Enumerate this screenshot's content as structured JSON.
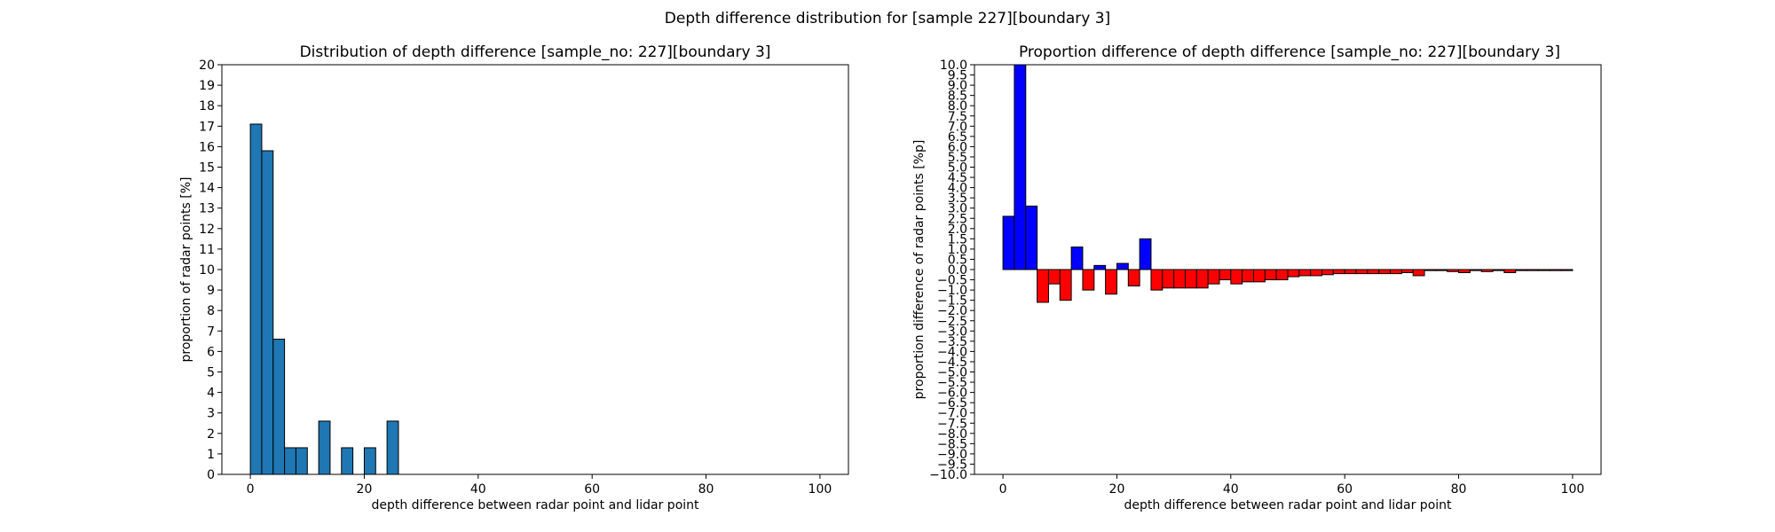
{
  "suptitle": "Depth difference distribution for [sample 227][boundary 3]",
  "chart_data": [
    {
      "type": "bar",
      "title": "Distribution of depth difference [sample_no: 227][boundary 3]",
      "xlabel": "depth difference between radar point and lidar point",
      "ylabel": "proportion of radar points [%]",
      "xlim": [
        -5,
        105
      ],
      "ylim": [
        0,
        20
      ],
      "xticks": [
        "0",
        "20",
        "40",
        "60",
        "80",
        "100"
      ],
      "yticks": [
        "0",
        "1",
        "2",
        "3",
        "4",
        "5",
        "6",
        "7",
        "8",
        "9",
        "10",
        "11",
        "12",
        "13",
        "14",
        "15",
        "16",
        "17",
        "18",
        "19",
        "20"
      ],
      "bin_width": 2,
      "bar_color": "#1f77b4",
      "edge_color": "#000000",
      "grid": false,
      "bins": [
        {
          "x0": 0,
          "value": 17.1
        },
        {
          "x0": 2,
          "value": 15.8
        },
        {
          "x0": 4,
          "value": 6.6
        },
        {
          "x0": 6,
          "value": 1.3
        },
        {
          "x0": 8,
          "value": 1.3
        },
        {
          "x0": 12,
          "value": 2.6
        },
        {
          "x0": 16,
          "value": 1.3
        },
        {
          "x0": 20,
          "value": 1.3
        },
        {
          "x0": 24,
          "value": 2.6
        }
      ]
    },
    {
      "type": "bar",
      "title": "Proportion difference of depth difference [sample_no: 227][boundary 3]",
      "xlabel": "depth difference between radar point and lidar point",
      "ylabel": "proportion difference of radar points [%p]",
      "xlim": [
        -5,
        105
      ],
      "ylim": [
        -10,
        10
      ],
      "xticks": [
        "0",
        "20",
        "40",
        "60",
        "80",
        "100"
      ],
      "yticks": [
        "−10.0",
        "−9.5",
        "−9.0",
        "−8.5",
        "−8.0",
        "−7.5",
        "−7.0",
        "−6.5",
        "−6.0",
        "−5.5",
        "−5.0",
        "−4.5",
        "−4.0",
        "−3.5",
        "−3.0",
        "−2.5",
        "−2.0",
        "−1.5",
        "−1.0",
        "−0.5",
        "0.0",
        "0.5",
        "1.0",
        "1.5",
        "2.0",
        "2.5",
        "3.0",
        "3.5",
        "4.0",
        "4.5",
        "5.0",
        "5.5",
        "6.0",
        "6.5",
        "7.0",
        "7.5",
        "8.0",
        "8.5",
        "9.0",
        "9.5",
        "10.0"
      ],
      "bin_width": 2,
      "positive_color": "#0000ff",
      "negative_color": "#ff0000",
      "edge_color": "#000000",
      "grid": false,
      "bins": [
        {
          "x0": 0,
          "value": 2.6
        },
        {
          "x0": 2,
          "value": 10.0
        },
        {
          "x0": 4,
          "value": 3.1
        },
        {
          "x0": 6,
          "value": -1.6
        },
        {
          "x0": 8,
          "value": -0.7
        },
        {
          "x0": 10,
          "value": -1.5
        },
        {
          "x0": 12,
          "value": 1.1
        },
        {
          "x0": 14,
          "value": -1.0
        },
        {
          "x0": 16,
          "value": 0.2
        },
        {
          "x0": 18,
          "value": -1.2
        },
        {
          "x0": 20,
          "value": 0.3
        },
        {
          "x0": 22,
          "value": -0.8
        },
        {
          "x0": 24,
          "value": 1.5
        },
        {
          "x0": 26,
          "value": -1.0
        },
        {
          "x0": 28,
          "value": -0.9
        },
        {
          "x0": 30,
          "value": -0.9
        },
        {
          "x0": 32,
          "value": -0.9
        },
        {
          "x0": 34,
          "value": -0.9
        },
        {
          "x0": 36,
          "value": -0.7
        },
        {
          "x0": 38,
          "value": -0.5
        },
        {
          "x0": 40,
          "value": -0.7
        },
        {
          "x0": 42,
          "value": -0.6
        },
        {
          "x0": 44,
          "value": -0.6
        },
        {
          "x0": 46,
          "value": -0.5
        },
        {
          "x0": 48,
          "value": -0.5
        },
        {
          "x0": 50,
          "value": -0.35
        },
        {
          "x0": 52,
          "value": -0.3
        },
        {
          "x0": 54,
          "value": -0.3
        },
        {
          "x0": 56,
          "value": -0.25
        },
        {
          "x0": 58,
          "value": -0.2
        },
        {
          "x0": 60,
          "value": -0.2
        },
        {
          "x0": 62,
          "value": -0.2
        },
        {
          "x0": 64,
          "value": -0.2
        },
        {
          "x0": 66,
          "value": -0.2
        },
        {
          "x0": 68,
          "value": -0.2
        },
        {
          "x0": 70,
          "value": -0.15
        },
        {
          "x0": 72,
          "value": -0.3
        },
        {
          "x0": 74,
          "value": -0.05
        },
        {
          "x0": 76,
          "value": -0.05
        },
        {
          "x0": 78,
          "value": -0.1
        },
        {
          "x0": 80,
          "value": -0.15
        },
        {
          "x0": 82,
          "value": -0.05
        },
        {
          "x0": 84,
          "value": -0.1
        },
        {
          "x0": 86,
          "value": -0.05
        },
        {
          "x0": 88,
          "value": -0.15
        },
        {
          "x0": 90,
          "value": -0.05
        },
        {
          "x0": 92,
          "value": -0.05
        },
        {
          "x0": 94,
          "value": -0.05
        },
        {
          "x0": 96,
          "value": -0.05
        },
        {
          "x0": 98,
          "value": -0.05
        }
      ]
    }
  ]
}
